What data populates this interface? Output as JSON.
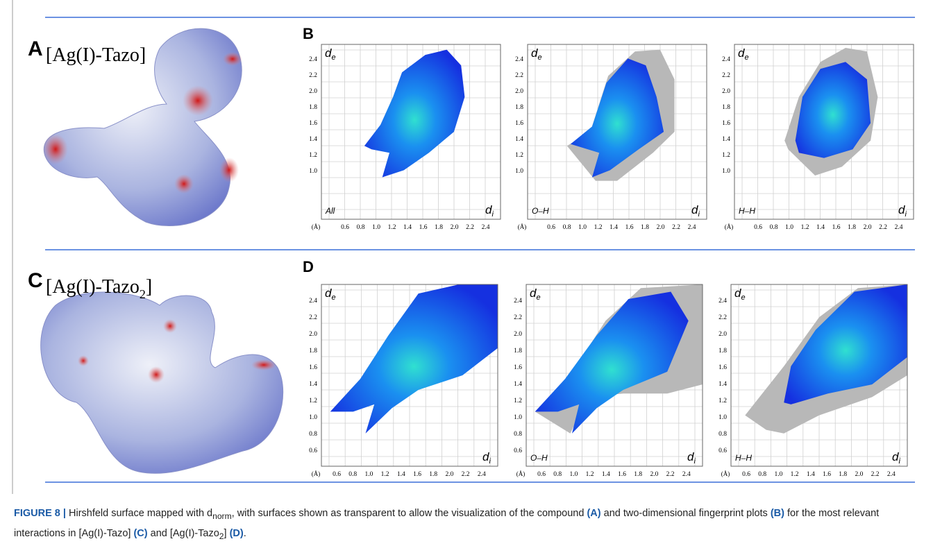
{
  "panel_a": {
    "letter": "A",
    "title": "[Ag(I)-Tazo]"
  },
  "panel_b": {
    "letter": "B",
    "plots": [
      {
        "y_axis": "d",
        "y_sub": "e",
        "x_axis": "d",
        "x_sub": "i",
        "label": "All",
        "unit": "(Å)",
        "yticks": [
          "2.4",
          "2.2",
          "2.0",
          "1.8",
          "1.6",
          "1.4",
          "1.2",
          "1.0"
        ],
        "xticks": [
          "0.6",
          "0.8",
          "1.0",
          "1.2",
          "1.4",
          "1.6",
          "1.8",
          "2.0",
          "2.2",
          "2.4"
        ]
      },
      {
        "y_axis": "d",
        "y_sub": "e",
        "x_axis": "d",
        "x_sub": "i",
        "label": "O–H",
        "unit": "(Å)",
        "yticks": [
          "2.4",
          "2.2",
          "2.0",
          "1.8",
          "1.6",
          "1.4",
          "1.2",
          "1.0"
        ],
        "xticks": [
          "0.6",
          "0.8",
          "1.0",
          "1.2",
          "1.4",
          "1.6",
          "1.8",
          "2.0",
          "2.2",
          "2.4"
        ]
      },
      {
        "y_axis": "d",
        "y_sub": "e",
        "x_axis": "d",
        "x_sub": "i",
        "label": "H–H",
        "unit": "(Å)",
        "yticks": [
          "2.4",
          "2.2",
          "2.0",
          "1.8",
          "1.6",
          "1.4",
          "1.2",
          "1.0"
        ],
        "xticks": [
          "0.6",
          "0.8",
          "1.0",
          "1.2",
          "1.4",
          "1.6",
          "1.8",
          "2.0",
          "2.2",
          "2.4"
        ]
      }
    ]
  },
  "panel_c": {
    "letter": "C",
    "title": "[Ag(I)-Tazo",
    "title_sub": "2",
    "title_end": "]"
  },
  "panel_d": {
    "letter": "D",
    "plots": [
      {
        "y_axis": "d",
        "y_sub": "e",
        "x_axis": "d",
        "x_sub": "i",
        "label": "",
        "unit": "(Å)",
        "yticks": [
          "2.4",
          "2.2",
          "2.0",
          "1.8",
          "1.6",
          "1.4",
          "1.2",
          "1.0",
          "0.8",
          "0.6"
        ],
        "xticks": [
          "0.6",
          "0.8",
          "1.0",
          "1.2",
          "1.4",
          "1.6",
          "1.8",
          "2.0",
          "2.2",
          "2.4"
        ]
      },
      {
        "y_axis": "d",
        "y_sub": "e",
        "x_axis": "d",
        "x_sub": "i",
        "label": "O–H",
        "unit": "(Å)",
        "yticks": [
          "2.4",
          "2.2",
          "2.0",
          "1.8",
          "1.6",
          "1.4",
          "1.2",
          "1.0",
          "0.8",
          "0.6"
        ],
        "xticks": [
          "0.6",
          "0.8",
          "1.0",
          "1.2",
          "1.4",
          "1.6",
          "1.8",
          "2.0",
          "2.2",
          "2.4"
        ]
      },
      {
        "y_axis": "d",
        "y_sub": "e",
        "x_axis": "d",
        "x_sub": "i",
        "label": "H–H",
        "unit": "(Å)",
        "yticks": [
          "2.4",
          "2.2",
          "2.0",
          "1.8",
          "1.6",
          "1.4",
          "1.2",
          "1.0",
          "0.8",
          "0.6"
        ],
        "xticks": [
          "0.6",
          "0.8",
          "1.0",
          "1.2",
          "1.4",
          "1.6",
          "1.8",
          "2.0",
          "2.2",
          "2.4"
        ]
      }
    ]
  },
  "caption": {
    "parts": [
      "FIGURE 8 |",
      " Hirshfeld surface mapped with d",
      "norm",
      ", with surfaces shown as transparent to allow the visualization of the compound ",
      "(A)",
      " and two-dimensional fingerprint plots ",
      "(B)",
      " for the most relevant interactions in [Ag(I)-Tazo] ",
      "(C)",
      " and [Ag(I)-Tazo",
      "2",
      "] ",
      "(D)",
      "."
    ]
  }
}
